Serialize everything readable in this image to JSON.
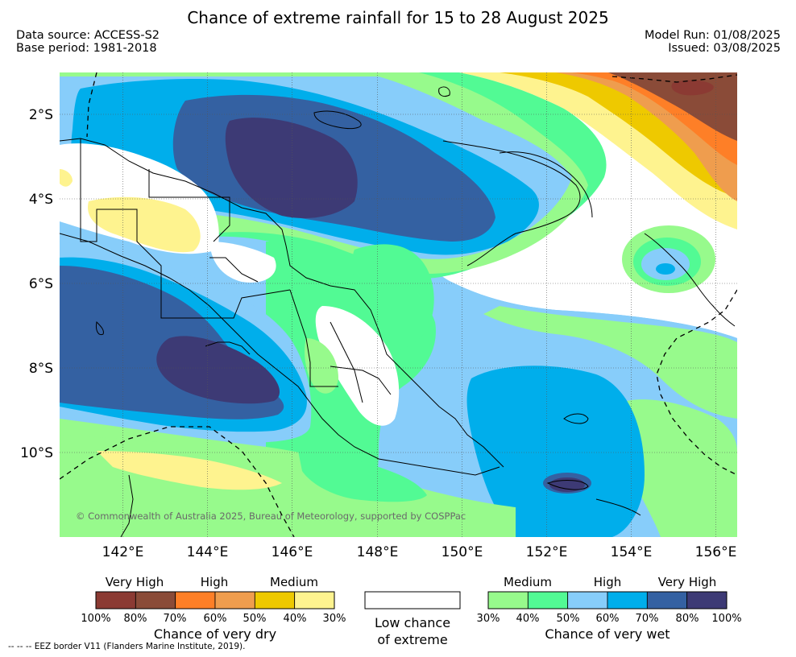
{
  "header": {
    "title": "Chance of extreme rainfall for 15 to 28 August 2025",
    "data_source": "Data source: ACCESS-S2",
    "base_period": "Base period: 1981-2018",
    "model_run": "Model Run: 01/08/2025",
    "issued": "Issued: 03/08/2025"
  },
  "map": {
    "lat_labels": [
      "2°S",
      "4°S",
      "6°S",
      "8°S",
      "10°S"
    ],
    "lon_labels": [
      "142°E",
      "144°E",
      "146°E",
      "148°E",
      "150°E",
      "152°E",
      "154°E",
      "156°E"
    ],
    "copyright": "© Commonwealth of Australia 2025, Bureau of Meteorology, supported by COSPPac",
    "eez_note": "--  --  -- EEZ border V11 (Flanders Marine Institute, 2019)."
  },
  "legend": {
    "dry": {
      "categories": [
        "Very High",
        "High",
        "Medium"
      ],
      "percentages": [
        "100%",
        "80%",
        "70%",
        "60%",
        "50%",
        "40%",
        "30%"
      ],
      "title": "Chance of very dry",
      "colors": [
        "#8b3a33",
        "#8a4b38",
        "#fe7f27",
        "#ef9d4e",
        "#eec900",
        "#fef38f"
      ]
    },
    "low": {
      "line1": "Low chance",
      "line2": "of extreme",
      "color": "#ffffff"
    },
    "wet": {
      "categories": [
        "Medium",
        "High",
        "Very High"
      ],
      "percentages": [
        "30%",
        "40%",
        "50%",
        "60%",
        "70%",
        "80%",
        "100%"
      ],
      "title": "Chance of very wet",
      "colors": [
        "#97fa8c",
        "#52fa94",
        "#87cdfa",
        "#00aeeb",
        "#3461a2",
        "#3d3a75"
      ]
    }
  }
}
